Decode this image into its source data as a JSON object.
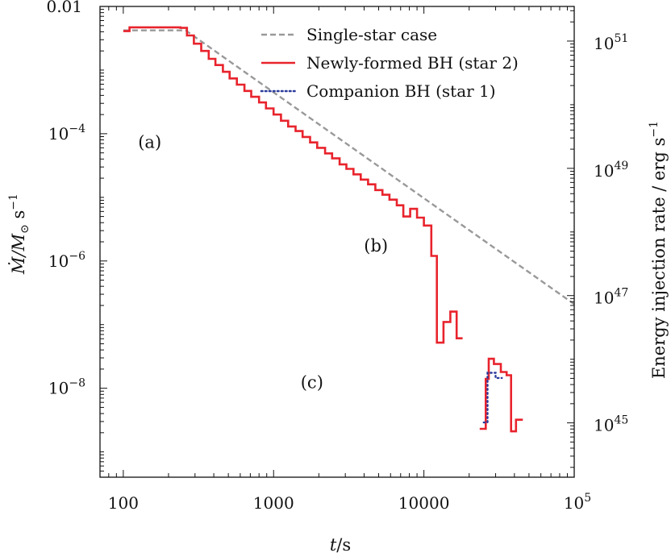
{
  "chart_data": {
    "type": "line",
    "xscale": "log",
    "yscale": "log",
    "xlim": [
      70,
      100000
    ],
    "ylim": [
      4e-10,
      0.01
    ],
    "right_ylim": [
      1.4e+44,
      3.5e+51
    ],
    "xlabel": {
      "italic": "t",
      "rest": "/s"
    },
    "ylabel": {
      "main": "Ṁ/M",
      "sub": "⊙",
      "unit": " s",
      "sup": "−1"
    },
    "right_ylabel": {
      "main": "Energy injection rate / erg s",
      "sup": "−1"
    },
    "x_ticks": [
      {
        "value": 100,
        "label": "100"
      },
      {
        "value": 1000,
        "label": "1000"
      },
      {
        "value": 10000,
        "label": "10000"
      },
      {
        "value": 100000,
        "base": "10",
        "exp": "5"
      }
    ],
    "y_ticks": [
      {
        "value": 0.01,
        "label": "0.01"
      },
      {
        "value": 0.0001,
        "base": "10",
        "exp": "−4"
      },
      {
        "value": 1e-06,
        "base": "10",
        "exp": "−6"
      },
      {
        "value": 1e-08,
        "base": "10",
        "exp": "−8"
      }
    ],
    "right_y_ticks": [
      {
        "value": 1e+51,
        "base": "10",
        "exp": "51"
      },
      {
        "value": 1e+49,
        "base": "10",
        "exp": "49"
      },
      {
        "value": 1e+47,
        "base": "10",
        "exp": "47"
      },
      {
        "value": 1e+45,
        "base": "10",
        "exp": "45"
      }
    ],
    "legend": {
      "placement": "top-right",
      "entries": [
        {
          "name": "Single-star case",
          "color": "#999999",
          "style": "dashed"
        },
        {
          "name": "Newly-formed BH (star 2)",
          "color": "#e8232c",
          "style": "solid"
        },
        {
          "name": "Companion BH (star 1)",
          "color": "#2b3a9c",
          "style": "dotted"
        }
      ]
    },
    "annotations": [
      {
        "text": "(a)",
        "x": 150,
        "y": 6e-05
      },
      {
        "text": "(b)",
        "x": 4800,
        "y": 1.4e-06
      },
      {
        "text": "(c)",
        "x": 1800,
        "y": 1e-08
      }
    ],
    "series": [
      {
        "name": "Single-star case",
        "kind": "line",
        "color": "#999999",
        "style": "dashed",
        "points": [
          [
            100,
            0.0042
          ],
          [
            260,
            0.0042
          ],
          [
            100000,
            2.1e-07
          ]
        ]
      },
      {
        "name": "Newly-formed BH (star 2)",
        "kind": "step",
        "color": "#e8232c",
        "style": "solid",
        "segments": [
          [
            [
              100,
              0.0041
            ],
            [
              110,
              0.0041
            ],
            [
              110,
              0.0047
            ],
            [
              240,
              0.0047
            ],
            [
              240,
              0.0046
            ],
            [
              265,
              0.0046
            ],
            [
              265,
              0.0035
            ],
            [
              295,
              0.0035
            ],
            [
              295,
              0.0026
            ],
            [
              330,
              0.0026
            ],
            [
              330,
              0.002
            ],
            [
              370,
              0.002
            ],
            [
              370,
              0.0015
            ],
            [
              410,
              0.0015
            ],
            [
              410,
              0.0012
            ],
            [
              460,
              0.0012
            ],
            [
              460,
              0.00094
            ],
            [
              510,
              0.00094
            ],
            [
              510,
              0.00074
            ],
            [
              570,
              0.00074
            ],
            [
              570,
              0.00059
            ],
            [
              640,
              0.00059
            ],
            [
              640,
              0.00047
            ],
            [
              710,
              0.00047
            ],
            [
              710,
              0.00038
            ],
            [
              800,
              0.00038
            ],
            [
              800,
              0.00031
            ],
            [
              890,
              0.00031
            ],
            [
              890,
              0.00025
            ],
            [
              1000,
              0.00025
            ],
            [
              1000,
              0.0002
            ],
            [
              1120,
              0.0002
            ],
            [
              1120,
              0.00016
            ],
            [
              1250,
              0.00016
            ],
            [
              1250,
              0.00013
            ],
            [
              1400,
              0.00013
            ],
            [
              1400,
              0.00011
            ],
            [
              1560,
              0.00011
            ],
            [
              1560,
              8.9e-05
            ],
            [
              1750,
              8.9e-05
            ],
            [
              1750,
              7.3e-05
            ],
            [
              1950,
              7.3e-05
            ],
            [
              1950,
              6e-05
            ],
            [
              2200,
              6e-05
            ],
            [
              2200,
              4.9e-05
            ],
            [
              2450,
              4.9e-05
            ],
            [
              2450,
              4.1e-05
            ],
            [
              2750,
              4.1e-05
            ],
            [
              2750,
              3.3e-05
            ],
            [
              3050,
              3.3e-05
            ],
            [
              3050,
              2.8e-05
            ],
            [
              3400,
              2.8e-05
            ],
            [
              3400,
              2.3e-05
            ],
            [
              3800,
              2.3e-05
            ],
            [
              3800,
              1.9e-05
            ],
            [
              4250,
              1.9e-05
            ],
            [
              4250,
              1.6e-05
            ],
            [
              4750,
              1.6e-05
            ],
            [
              4750,
              1.3e-05
            ],
            [
              5300,
              1.3e-05
            ],
            [
              5300,
              1.1e-05
            ],
            [
              5900,
              1.1e-05
            ],
            [
              5900,
              9.2e-06
            ],
            [
              6600,
              9.2e-06
            ],
            [
              6600,
              7.5e-06
            ],
            [
              7300,
              7.5e-06
            ],
            [
              7300,
              5e-06
            ],
            [
              8100,
              5e-06
            ],
            [
              8100,
              6.6e-06
            ],
            [
              9000,
              6.6e-06
            ],
            [
              9000,
              4.8e-06
            ],
            [
              10000,
              4.8e-06
            ],
            [
              10000,
              3.6e-06
            ],
            [
              11200,
              3.6e-06
            ],
            [
              11200,
              1.2e-06
            ],
            [
              12200,
              1.2e-06
            ],
            [
              12200,
              5.2e-08
            ],
            [
              13500,
              5.2e-08
            ],
            [
              13500,
              1.1e-07
            ],
            [
              15000,
              1.1e-07
            ],
            [
              15000,
              1.6e-07
            ],
            [
              16500,
              1.6e-07
            ],
            [
              16500,
              6.1e-08
            ],
            [
              18100,
              6.1e-08
            ]
          ],
          [
            [
              23500,
              2.3e-09
            ],
            [
              25800,
              2.3e-09
            ],
            [
              25800,
              1.4e-08
            ],
            [
              27000,
              1.4e-08
            ],
            [
              27000,
              2.9e-08
            ],
            [
              29200,
              2.9e-08
            ],
            [
              29200,
              2.4e-08
            ],
            [
              32500,
              2.4e-08
            ],
            [
              32500,
              1.8e-08
            ],
            [
              35500,
              1.8e-08
            ],
            [
              35500,
              1.6e-08
            ],
            [
              38000,
              1.6e-08
            ],
            [
              38000,
              2.1e-09
            ],
            [
              41000,
              2.1e-09
            ],
            [
              41000,
              3.2e-09
            ],
            [
              45500,
              3.2e-09
            ]
          ]
        ]
      },
      {
        "name": "Companion BH (star 1)",
        "kind": "step",
        "color": "#2b3a9c",
        "style": "dotted",
        "segments": [
          [
            [
              25000,
              2.9e-09
            ],
            [
              26500,
              2.9e-09
            ],
            [
              26500,
              1.75e-08
            ],
            [
              30000,
              1.75e-08
            ],
            [
              30000,
              1.45e-08
            ],
            [
              33000,
              1.45e-08
            ]
          ]
        ]
      }
    ]
  }
}
